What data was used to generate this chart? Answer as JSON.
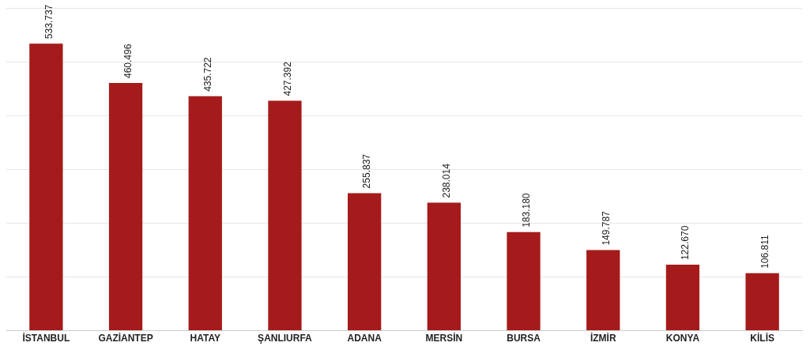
{
  "chart_data": {
    "type": "bar",
    "categories": [
      "İSTANBUL",
      "GAZİANTEP",
      "HATAY",
      "ŞANLIURFA",
      "ADANA",
      "MERSİN",
      "BURSA",
      "İZMİR",
      "KONYA",
      "KİLİS"
    ],
    "values": [
      533737,
      460496,
      435722,
      427392,
      255837,
      238014,
      183180,
      149787,
      122670,
      106811
    ],
    "value_labels": [
      "533.737",
      "460.496",
      "435.722",
      "427.392",
      "255.837",
      "238.014",
      "183.180",
      "149.787",
      "122.670",
      "106.811"
    ],
    "color": "#a51b1b",
    "ylim": [
      0,
      600000
    ],
    "yticks": [
      {
        "value": 0,
        "label": null
      },
      {
        "value": 100000,
        "label": null
      },
      {
        "value": 200000,
        "label": null
      },
      {
        "value": 300000,
        "label": null
      },
      {
        "value": 400000,
        "label": null
      },
      {
        "value": 500000,
        "label": null
      },
      {
        "value": 600000,
        "label": null
      }
    ],
    "grid": "y",
    "tick_labels": "x",
    "legend": false
  }
}
